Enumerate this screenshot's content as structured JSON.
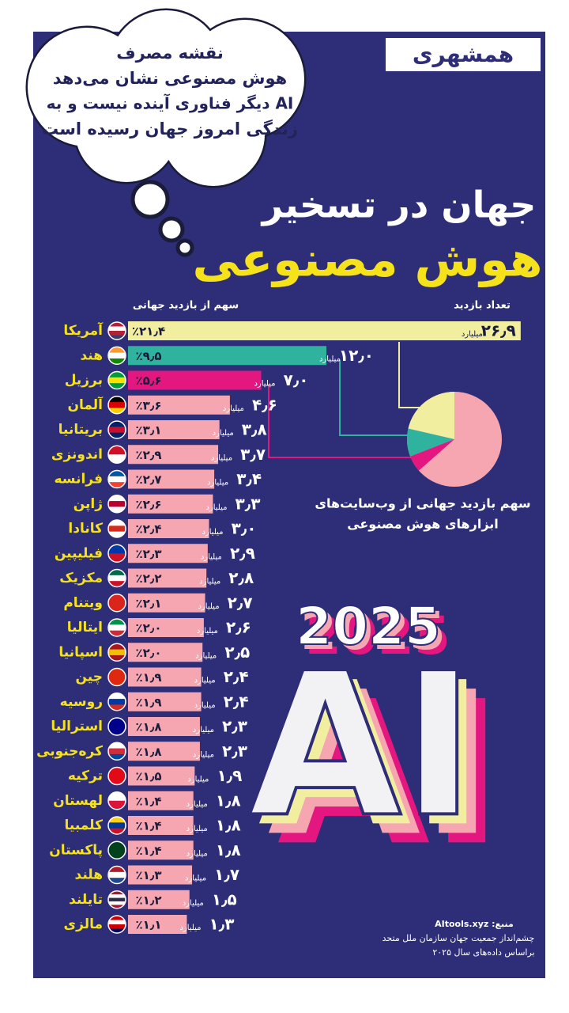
{
  "header": {
    "logo": "همشهری",
    "bubble": [
      "نقشه مصرف",
      "هوش مصنوعی نشان می‌دهد",
      "AI دیگر فناوری آینده نیست و به",
      "زندگی امروز جهان رسیده است"
    ],
    "title": "جهان در تسخیر",
    "subtitle": "هوش مصنوعی"
  },
  "chart_data": {
    "type": "bar",
    "categories": [
      "آمریکا",
      "هند",
      "برزیل",
      "آلمان",
      "بریتانیا",
      "اندونزی",
      "فرانسه",
      "ژاپن",
      "کانادا",
      "فیلیپین",
      "مکزیک",
      "ویتنام",
      "ایتالیا",
      "اسپانیا",
      "چین",
      "روسیه",
      "استرالیا",
      "کره‌جنوبی",
      "ترکیه",
      "لهستان",
      "کلمبیا",
      "پاکستان",
      "هلند",
      "تایلند",
      "مالزی"
    ],
    "series": [
      {
        "name": "تعداد بازدید",
        "unit": "میلیارد",
        "color": "#f5a6b1",
        "colors": [
          "#f1ee9f",
          "#2fb39e",
          "#e3177f",
          "#f5a6b1",
          "#f5a6b1",
          "#f5a6b1",
          "#f5a6b1",
          "#f5a6b1",
          "#f5a6b1",
          "#f5a6b1",
          "#f5a6b1",
          "#f5a6b1",
          "#f5a6b1",
          "#f5a6b1",
          "#f5a6b1",
          "#f5a6b1",
          "#f5a6b1",
          "#f5a6b1",
          "#f5a6b1",
          "#f5a6b1",
          "#f5a6b1",
          "#f5a6b1",
          "#f5a6b1",
          "#f5a6b1",
          "#f5a6b1"
        ],
        "values": [
          26.9,
          12.0,
          7.0,
          4.6,
          3.8,
          3.7,
          3.4,
          3.3,
          3.0,
          2.9,
          2.8,
          2.7,
          2.6,
          2.5,
          2.4,
          2.4,
          2.3,
          2.3,
          1.9,
          1.8,
          1.8,
          1.8,
          1.7,
          1.5,
          1.3
        ],
        "value_labels": [
          "۲۶٫۹",
          "۱۲٫۰",
          "۷٫۰",
          "۴٫۶",
          "۳٫۸",
          "۳٫۷",
          "۳٫۴",
          "۳٫۳",
          "۳٫۰",
          "۲٫۹",
          "۲٫۸",
          "۲٫۷",
          "۲٫۶",
          "۲٫۵",
          "۲٫۴",
          "۲٫۴",
          "۲٫۳",
          "۲٫۳",
          "۱٫۹",
          "۱٫۸",
          "۱٫۸",
          "۱٫۸",
          "۱٫۷",
          "۱٫۵",
          "۱٫۳"
        ]
      },
      {
        "name": "سهم از بازدید جهانی",
        "values": [
          21.4,
          9.5,
          5.6,
          3.6,
          3.1,
          2.9,
          2.7,
          2.6,
          2.4,
          2.3,
          2.2,
          2.1,
          2.0,
          2.0,
          1.9,
          1.9,
          1.8,
          1.8,
          1.5,
          1.4,
          1.4,
          1.4,
          1.3,
          1.2,
          1.1
        ],
        "value_labels": [
          "٪۲۱٫۴",
          "٪۹٫۵",
          "٪۵٫۶",
          "٪۳٫۶",
          "٪۳٫۱",
          "٪۲٫۹",
          "٪۲٫۷",
          "٪۲٫۶",
          "٪۲٫۴",
          "٪۲٫۳",
          "٪۲٫۲",
          "٪۲٫۱",
          "٪۲٫۰",
          "٪۲٫۰",
          "٪۱٫۹",
          "٪۱٫۹",
          "٪۱٫۸",
          "٪۱٫۸",
          "٪۱٫۵",
          "٪۱٫۴",
          "٪۱٫۴",
          "٪۱٫۴",
          "٪۱٫۳",
          "٪۱٫۲",
          "٪۱٫۱"
        ]
      }
    ],
    "pie_caption": [
      "سهم بازدید جهانی از وب‌سایت‌های",
      "ابزارهای هوش مصنوعی"
    ]
  },
  "artwork": {
    "year": "2025",
    "word": "AI"
  },
  "source": [
    "منبع: AItools.xyz",
    "چشم‌انداز جمعیت جهان سازمان ملل متحد",
    "براساس داده‌های سال ۲۰۲۵"
  ]
}
